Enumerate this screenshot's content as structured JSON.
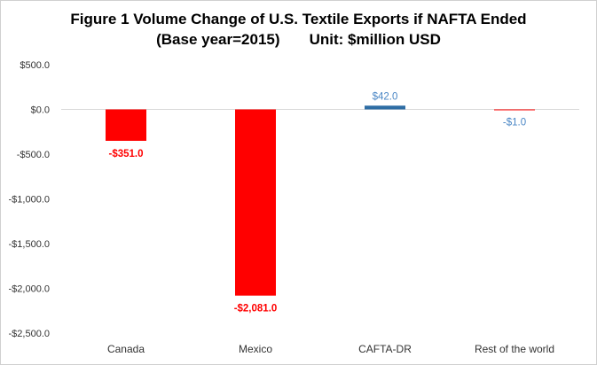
{
  "title": {
    "line1": "Figure 1 Volume Change of U.S. Textile Exports if NAFTA Ended",
    "line2": "(Base year=2015)       Unit: $million USD"
  },
  "colors": {
    "negative": "#ff0000",
    "positive": "#2e6da4",
    "small_label": "#4a86c5",
    "axis": "#d9d9d9",
    "text": "#333333"
  },
  "chart_data": {
    "type": "bar",
    "title": "Figure 1 Volume Change of U.S. Textile Exports if NAFTA Ended (Base year=2015) Unit: $million USD",
    "categories": [
      "Canada",
      "Mexico",
      "CAFTA-DR",
      "Rest of the world"
    ],
    "values": [
      -351.0,
      -2081.0,
      42.0,
      -1.0
    ],
    "data_labels": [
      "-$351.0",
      "-$2,081.0",
      "$42.0",
      "-$1.0"
    ],
    "ylim": [
      -2500,
      500
    ],
    "yticks": [
      500,
      0,
      -500,
      -1000,
      -1500,
      -2000,
      -2500
    ],
    "ytick_labels": [
      "$500.0",
      "$0.0",
      "-$500.0",
      "-$1,000.0",
      "-$1,500.0",
      "-$2,000.0",
      "-$2,500.0"
    ],
    "xlabel": "",
    "ylabel": "",
    "grid": false
  }
}
